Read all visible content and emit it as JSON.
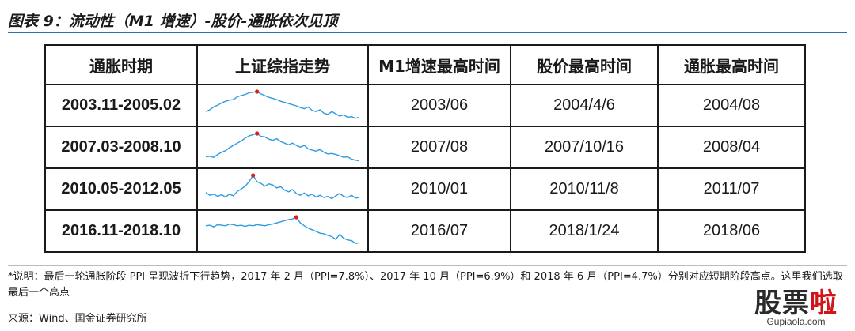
{
  "title": "图表 9：流动性（M1 增速）-股价-通胀依次见顶",
  "table": {
    "headers": [
      "通胀时期",
      "上证综指走势",
      "M1增速最高时间",
      "股价最高时间",
      "通胀最高时间"
    ],
    "rows": [
      {
        "period": "2003.11-2005.02",
        "m1_peak": "2003/06",
        "stock_peak": "2004/4/6",
        "inflation_peak": "2004/08"
      },
      {
        "period": "2007.03-2008.10",
        "m1_peak": "2007/08",
        "stock_peak": "2007/10/16",
        "inflation_peak": "2008/04"
      },
      {
        "period": "2010.05-2012.05",
        "m1_peak": "2010/01",
        "stock_peak": "2010/11/8",
        "inflation_peak": "2011/07"
      },
      {
        "period": "2016.11-2018.10",
        "m1_peak": "2016/07",
        "stock_peak": "2018/1/24",
        "inflation_peak": "2018/06"
      }
    ]
  },
  "sparklines": [
    {
      "values": [
        0.3,
        0.36,
        0.46,
        0.52,
        0.6,
        0.66,
        0.7,
        0.72,
        0.82,
        0.86,
        0.9,
        0.96,
        0.98,
        1.0,
        0.92,
        0.86,
        0.8,
        0.76,
        0.72,
        0.66,
        0.62,
        0.58,
        0.54,
        0.5,
        0.44,
        0.4,
        0.46,
        0.34,
        0.3,
        0.36,
        0.24,
        0.2,
        0.3,
        0.22,
        0.14,
        0.18,
        0.1,
        0.12,
        0.06,
        0.1
      ],
      "peak_index": 13
    },
    {
      "values": [
        0.18,
        0.2,
        0.16,
        0.26,
        0.34,
        0.4,
        0.5,
        0.58,
        0.66,
        0.74,
        0.84,
        0.92,
        0.96,
        1.0,
        0.9,
        0.88,
        0.8,
        0.76,
        0.82,
        0.72,
        0.66,
        0.6,
        0.66,
        0.58,
        0.52,
        0.58,
        0.46,
        0.42,
        0.38,
        0.44,
        0.34,
        0.28,
        0.3,
        0.26,
        0.22,
        0.16,
        0.18,
        0.1,
        0.06,
        0.04
      ],
      "peak_index": 13
    },
    {
      "values": [
        0.4,
        0.3,
        0.34,
        0.26,
        0.32,
        0.24,
        0.34,
        0.28,
        0.44,
        0.52,
        0.62,
        0.78,
        1.0,
        0.78,
        0.72,
        0.62,
        0.7,
        0.66,
        0.56,
        0.6,
        0.48,
        0.42,
        0.5,
        0.36,
        0.3,
        0.38,
        0.28,
        0.34,
        0.24,
        0.3,
        0.22,
        0.26,
        0.18,
        0.28,
        0.36,
        0.26,
        0.22,
        0.3,
        0.2,
        0.22
      ],
      "peak_index": 12
    },
    {
      "values": [
        0.7,
        0.72,
        0.66,
        0.74,
        0.72,
        0.7,
        0.76,
        0.74,
        0.7,
        0.72,
        0.68,
        0.72,
        0.7,
        0.74,
        0.72,
        0.7,
        0.74,
        0.76,
        0.8,
        0.84,
        0.88,
        0.92,
        0.94,
        1.0,
        0.8,
        0.7,
        0.62,
        0.56,
        0.5,
        0.44,
        0.42,
        0.36,
        0.32,
        0.22,
        0.4,
        0.26,
        0.2,
        0.18,
        0.08,
        0.1
      ],
      "peak_index": 23
    }
  ],
  "sparkline_color": "#2f9be0",
  "peak_color": "#d42020",
  "note": "*说明：最后一轮通胀阶段 PPI 呈现波折下行趋势，2017 年 2 月（PPI=7.8%）、2017 年 10 月（PPI=6.9%）和 2018 年 6 月（PPI=4.7%）分别对应短期阶段高点。这里我们选取最后一个高点",
  "source": "来源：Wind、国金证券研究所",
  "watermark": {
    "brand_left": "股票",
    "brand_right": "啦",
    "url": "Gupiaola.com"
  }
}
